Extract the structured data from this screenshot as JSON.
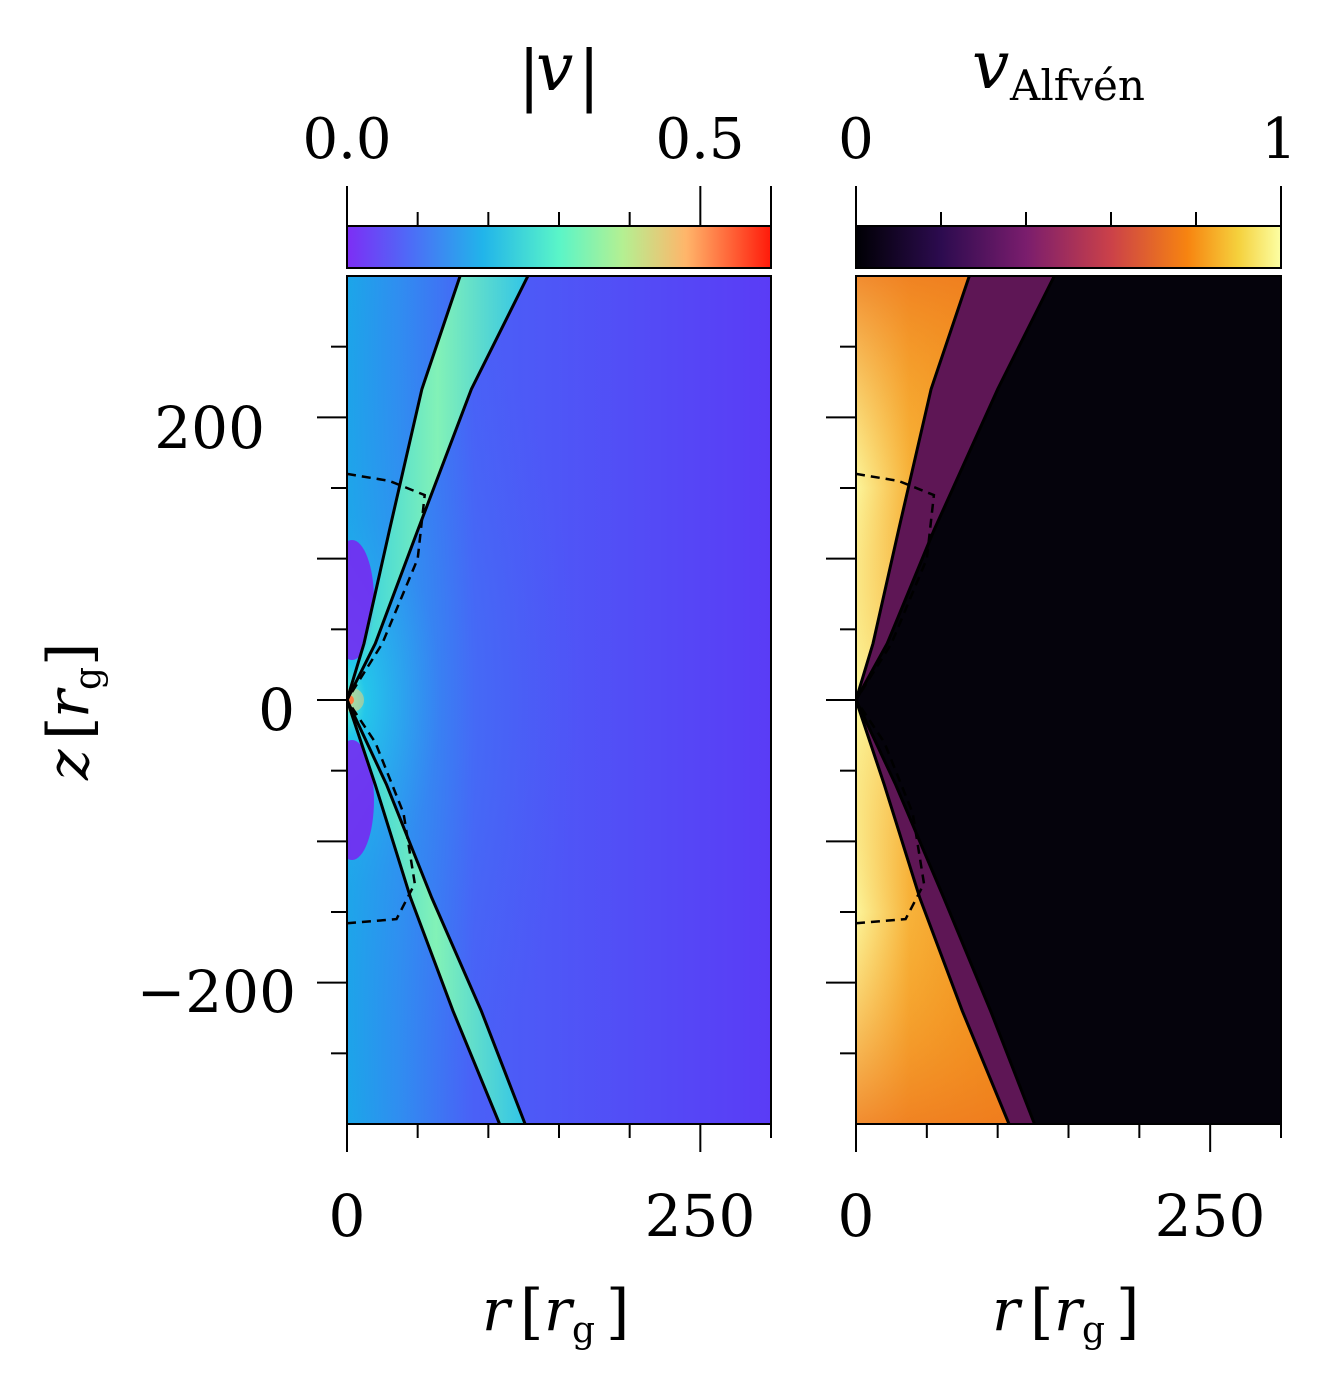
{
  "chart_data": [
    {
      "type": "heatmap",
      "title": "|v|",
      "xlabel": "r [r_g]",
      "ylabel": "z [r_g]",
      "xlim": [
        0,
        300
      ],
      "ylim": [
        -300,
        300
      ],
      "x_ticks": [
        "0",
        "250"
      ],
      "y_ticks": [
        "200",
        "0",
        "−200"
      ],
      "colorbar": {
        "label": "|v|",
        "range": [
          0,
          0.6
        ],
        "tick_labels": [
          "0.0",
          "0.5"
        ],
        "colormap": "rainbow"
      },
      "contours": {
        "solid_upper": [
          [
            [
              0,
              0
            ],
            [
              12,
              40
            ],
            [
              30,
              120
            ],
            [
              53,
              220
            ],
            [
              80,
              300
            ]
          ],
          [
            [
              0,
              0
            ],
            [
              20,
              40
            ],
            [
              50,
              120
            ],
            [
              88,
              220
            ],
            [
              128,
              300
            ]
          ]
        ],
        "solid_lower": [
          [
            [
              0,
              0
            ],
            [
              20,
              -60
            ],
            [
              45,
              -140
            ],
            [
              75,
              -220
            ],
            [
              108,
              -300
            ]
          ],
          [
            [
              0,
              0
            ],
            [
              28,
              -60
            ],
            [
              60,
              -140
            ],
            [
              95,
              -220
            ],
            [
              126,
              -300
            ]
          ]
        ],
        "dashed_upper": [
          [
            0,
            160
          ],
          [
            30,
            155
          ],
          [
            55,
            145
          ],
          [
            50,
            100
          ],
          [
            25,
            40
          ],
          [
            0,
            0
          ]
        ],
        "dashed_lower": [
          [
            0,
            -158
          ],
          [
            35,
            -155
          ],
          [
            48,
            -130
          ],
          [
            40,
            -80
          ],
          [
            20,
            -30
          ],
          [
            0,
            0
          ]
        ]
      }
    },
    {
      "type": "heatmap",
      "title": "v_Alfvén",
      "xlabel": "r [r_g]",
      "xlim": [
        0,
        300
      ],
      "ylim": [
        -300,
        300
      ],
      "x_ticks": [
        "0",
        "250"
      ],
      "colorbar": {
        "label": "v_Alfvén",
        "range": [
          0,
          1
        ],
        "tick_labels": [
          "0",
          "1"
        ],
        "colormap": "inferno"
      },
      "contours": {
        "solid_upper": [
          [
            [
              0,
              0
            ],
            [
              12,
              40
            ],
            [
              30,
              120
            ],
            [
              53,
              220
            ],
            [
              80,
              300
            ]
          ],
          [
            [
              0,
              0
            ],
            [
              22,
              40
            ],
            [
              55,
              120
            ],
            [
              100,
              220
            ],
            [
              140,
              300
            ]
          ]
        ],
        "solid_lower": [
          [
            [
              0,
              0
            ],
            [
              20,
              -60
            ],
            [
              45,
              -140
            ],
            [
              75,
              -220
            ],
            [
              108,
              -300
            ]
          ],
          [
            [
              0,
              0
            ],
            [
              28,
              -60
            ],
            [
              62,
              -140
            ],
            [
              95,
              -220
            ],
            [
              126,
              -300
            ]
          ]
        ],
        "dashed_upper": [
          [
            0,
            160
          ],
          [
            30,
            155
          ],
          [
            55,
            145
          ],
          [
            50,
            100
          ],
          [
            25,
            40
          ],
          [
            0,
            0
          ]
        ],
        "dashed_lower": [
          [
            0,
            -158
          ],
          [
            35,
            -155
          ],
          [
            48,
            -130
          ],
          [
            40,
            -80
          ],
          [
            20,
            -30
          ],
          [
            0,
            0
          ]
        ]
      }
    }
  ],
  "labels": {
    "left_title_bar": "|",
    "left_title_var": "v",
    "right_title_var": "v",
    "right_title_sub": "Alfvén",
    "cb1_tick_low": "0.0",
    "cb1_tick_high": "0.5",
    "cb2_tick_low": "0",
    "cb2_tick_high": "1",
    "y_tick_200": "200",
    "y_tick_0": "0",
    "y_tick_m200": "−200",
    "x_tick_0": "0",
    "x_tick_250": "250",
    "axis_var_r": "r",
    "axis_var_z": "z",
    "axis_unit": "r",
    "axis_unit_sub": "g"
  }
}
